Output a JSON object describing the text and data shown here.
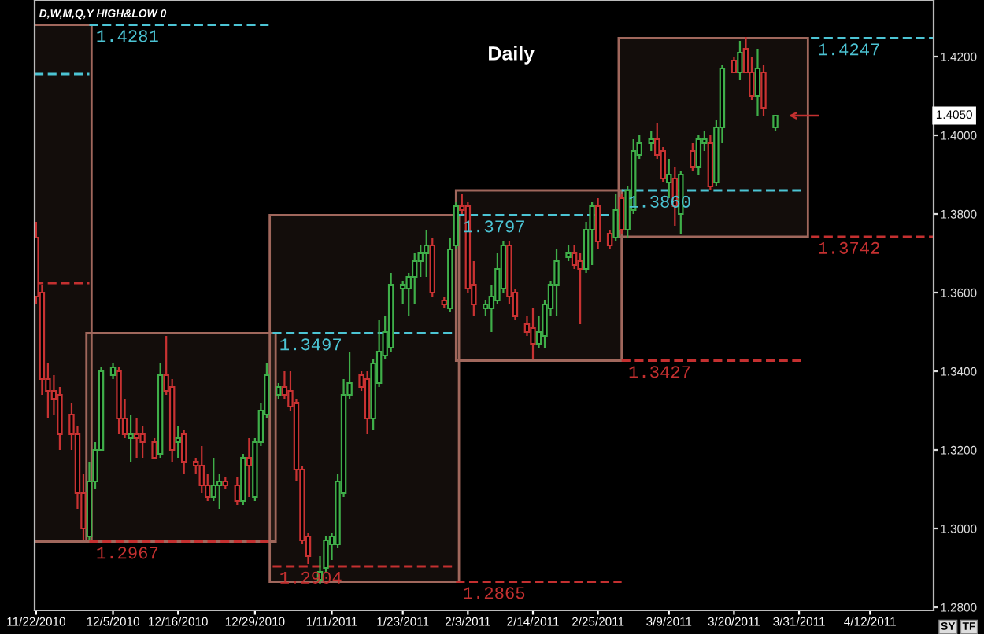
{
  "chart_data": {
    "type": "candlestick",
    "title": "Daily",
    "x": [
      "2010-11-22",
      "2010-11-23",
      "2010-11-24",
      "2010-11-25",
      "2010-11-26",
      "2010-11-28",
      "2010-11-29",
      "2010-11-30",
      "2010-12-01",
      "2010-12-02",
      "2010-12-03",
      "2010-12-05",
      "2010-12-06",
      "2010-12-07",
      "2010-12-08",
      "2010-12-09",
      "2010-12-10",
      "2010-12-12",
      "2010-12-13",
      "2010-12-14",
      "2010-12-15",
      "2010-12-16",
      "2010-12-17",
      "2010-12-19",
      "2010-12-20",
      "2010-12-21",
      "2010-12-22",
      "2010-12-23",
      "2010-12-24",
      "2010-12-26",
      "2010-12-27",
      "2010-12-28",
      "2010-12-29",
      "2010-12-30",
      "2010-12-31",
      "2011-01-02",
      "2011-01-03",
      "2011-01-04",
      "2011-01-05",
      "2011-01-06",
      "2011-01-07",
      "2011-01-09",
      "2011-01-10",
      "2011-01-11",
      "2011-01-12",
      "2011-01-13",
      "2011-01-14",
      "2011-01-16",
      "2011-01-17",
      "2011-01-18",
      "2011-01-19",
      "2011-01-20",
      "2011-01-21",
      "2011-01-23",
      "2011-01-24",
      "2011-01-25",
      "2011-01-26",
      "2011-01-27",
      "2011-01-28",
      "2011-01-30",
      "2011-01-31",
      "2011-02-01",
      "2011-02-02",
      "2011-02-03",
      "2011-02-04",
      "2011-02-06",
      "2011-02-07",
      "2011-02-08",
      "2011-02-09",
      "2011-02-10",
      "2011-02-11",
      "2011-02-13",
      "2011-02-14",
      "2011-02-15",
      "2011-02-16",
      "2011-02-17",
      "2011-02-18",
      "2011-02-20",
      "2011-02-21",
      "2011-02-22",
      "2011-02-23",
      "2011-02-24",
      "2011-02-25",
      "2011-02-27",
      "2011-02-28",
      "2011-03-01",
      "2011-03-02",
      "2011-03-03",
      "2011-03-04",
      "2011-03-06",
      "2011-03-07",
      "2011-03-08",
      "2011-03-09",
      "2011-03-10",
      "2011-03-11",
      "2011-03-13",
      "2011-03-14",
      "2011-03-15",
      "2011-03-16",
      "2011-03-17",
      "2011-03-18",
      "2011-03-20",
      "2011-03-21",
      "2011-03-22",
      "2011-03-23",
      "2011-03-24",
      "2011-03-25",
      "2011-03-27"
    ],
    "ohlc": [
      [
        1.374,
        1.378,
        1.357,
        1.359
      ],
      [
        1.36,
        1.362,
        1.334,
        1.338
      ],
      [
        1.338,
        1.342,
        1.328,
        1.335
      ],
      [
        1.335,
        1.339,
        1.329,
        1.333
      ],
      [
        1.334,
        1.336,
        1.32,
        1.324
      ],
      [
        1.329,
        1.332,
        1.32,
        1.324
      ],
      [
        1.324,
        1.326,
        1.305,
        1.309
      ],
      [
        1.309,
        1.314,
        1.297,
        1.3
      ],
      [
        1.298,
        1.317,
        1.297,
        1.312
      ],
      [
        1.312,
        1.322,
        1.31,
        1.32
      ],
      [
        1.32,
        1.341,
        1.32,
        1.34
      ],
      [
        1.339,
        1.342,
        1.338,
        1.341
      ],
      [
        1.34,
        1.341,
        1.324,
        1.328
      ],
      [
        1.328,
        1.333,
        1.323,
        1.324
      ],
      [
        1.323,
        1.329,
        1.317,
        1.324
      ],
      [
        1.324,
        1.328,
        1.318,
        1.323
      ],
      [
        1.324,
        1.326,
        1.318,
        1.322
      ],
      [
        1.322,
        1.323,
        1.318,
        1.318
      ],
      [
        1.319,
        1.342,
        1.318,
        1.339
      ],
      [
        1.339,
        1.349,
        1.334,
        1.335
      ],
      [
        1.336,
        1.338,
        1.317,
        1.32
      ],
      [
        1.322,
        1.326,
        1.318,
        1.323
      ],
      [
        1.324,
        1.325,
        1.314,
        1.317
      ],
      [
        1.317,
        1.318,
        1.314,
        1.316
      ],
      [
        1.316,
        1.321,
        1.309,
        1.311
      ],
      [
        1.311,
        1.314,
        1.307,
        1.308
      ],
      [
        1.308,
        1.318,
        1.307,
        1.311
      ],
      [
        1.311,
        1.314,
        1.305,
        1.312
      ],
      [
        1.312,
        1.313,
        1.31,
        1.311
      ],
      [
        1.311,
        1.313,
        1.306,
        1.307
      ],
      [
        1.307,
        1.319,
        1.306,
        1.318
      ],
      [
        1.318,
        1.323,
        1.308,
        1.316
      ],
      [
        1.308,
        1.323,
        1.307,
        1.322
      ],
      [
        1.322,
        1.332,
        1.321,
        1.33
      ],
      [
        1.329,
        1.342,
        1.328,
        1.339
      ],
      [
        1.334,
        1.337,
        1.333,
        1.336
      ],
      [
        1.336,
        1.34,
        1.333,
        1.334
      ],
      [
        1.335,
        1.34,
        1.33,
        1.331
      ],
      [
        1.332,
        1.333,
        1.312,
        1.315
      ],
      [
        1.315,
        1.316,
        1.296,
        1.297
      ],
      [
        1.298,
        1.299,
        1.291,
        1.293
      ],
      [
        1.287,
        1.293,
        1.286,
        1.289
      ],
      [
        1.29,
        1.298,
        1.289,
        1.297
      ],
      [
        1.296,
        1.299,
        1.292,
        1.298
      ],
      [
        1.296,
        1.314,
        1.295,
        1.312
      ],
      [
        1.309,
        1.338,
        1.308,
        1.334
      ],
      [
        1.334,
        1.345,
        1.333,
        1.337
      ],
      [
        1.339,
        1.34,
        1.335,
        1.336
      ],
      [
        1.338,
        1.34,
        1.324,
        1.328
      ],
      [
        1.328,
        1.343,
        1.325,
        1.342
      ],
      [
        1.337,
        1.353,
        1.336,
        1.345
      ],
      [
        1.344,
        1.354,
        1.343,
        1.35
      ],
      [
        1.346,
        1.365,
        1.345,
        1.362
      ],
      [
        1.361,
        1.363,
        1.357,
        1.362
      ],
      [
        1.361,
        1.365,
        1.354,
        1.364
      ],
      [
        1.364,
        1.37,
        1.357,
        1.368
      ],
      [
        1.368,
        1.372,
        1.364,
        1.37
      ],
      [
        1.37,
        1.376,
        1.364,
        1.372
      ],
      [
        1.372,
        1.374,
        1.359,
        1.36
      ],
      [
        1.358,
        1.359,
        1.356,
        1.357
      ],
      [
        1.356,
        1.374,
        1.355,
        1.371
      ],
      [
        1.372,
        1.383,
        1.371,
        1.382
      ],
      [
        1.382,
        1.385,
        1.38,
        1.381
      ],
      [
        1.382,
        1.383,
        1.36,
        1.361
      ],
      [
        1.362,
        1.368,
        1.354,
        1.357
      ],
      [
        1.356,
        1.358,
        1.354,
        1.357
      ],
      [
        1.356,
        1.362,
        1.35,
        1.359
      ],
      [
        1.358,
        1.37,
        1.357,
        1.366
      ],
      [
        1.361,
        1.373,
        1.36,
        1.372
      ],
      [
        1.372,
        1.373,
        1.357,
        1.359
      ],
      [
        1.36,
        1.361,
        1.353,
        1.354
      ],
      [
        1.352,
        1.354,
        1.349,
        1.35
      ],
      [
        1.351,
        1.356,
        1.343,
        1.347
      ],
      [
        1.347,
        1.354,
        1.346,
        1.35
      ],
      [
        1.349,
        1.358,
        1.346,
        1.357
      ],
      [
        1.356,
        1.363,
        1.354,
        1.362
      ],
      [
        1.362,
        1.371,
        1.354,
        1.368
      ],
      [
        1.369,
        1.372,
        1.368,
        1.37
      ],
      [
        1.37,
        1.372,
        1.366,
        1.367
      ],
      [
        1.368,
        1.37,
        1.352,
        1.366
      ],
      [
        1.366,
        1.378,
        1.365,
        1.376
      ],
      [
        1.376,
        1.383,
        1.367,
        1.382
      ],
      [
        1.382,
        1.384,
        1.371,
        1.373
      ],
      [
        1.375,
        1.376,
        1.371,
        1.372
      ],
      [
        1.374,
        1.385,
        1.373,
        1.381
      ],
      [
        1.384,
        1.385,
        1.375,
        1.376
      ],
      [
        1.376,
        1.387,
        1.374,
        1.386
      ],
      [
        1.381,
        1.399,
        1.38,
        1.396
      ],
      [
        1.395,
        1.4,
        1.394,
        1.398
      ],
      [
        1.398,
        1.401,
        1.396,
        1.399
      ],
      [
        1.399,
        1.403,
        1.394,
        1.395
      ],
      [
        1.396,
        1.397,
        1.388,
        1.389
      ],
      [
        1.388,
        1.394,
        1.384,
        1.39
      ],
      [
        1.389,
        1.392,
        1.377,
        1.382
      ],
      [
        1.38,
        1.391,
        1.375,
        1.39
      ],
      [
        1.396,
        1.398,
        1.391,
        1.392
      ],
      [
        1.392,
        1.4,
        1.39,
        1.399
      ],
      [
        1.398,
        1.401,
        1.396,
        1.399
      ],
      [
        1.398,
        1.4,
        1.386,
        1.387
      ],
      [
        1.388,
        1.404,
        1.387,
        1.402
      ],
      [
        1.402,
        1.418,
        1.398,
        1.417
      ],
      [
        1.419,
        1.42,
        1.416,
        1.416
      ],
      [
        1.416,
        1.424,
        1.414,
        1.421
      ],
      [
        1.422,
        1.425,
        1.416,
        1.416
      ],
      [
        1.416,
        1.42,
        1.409,
        1.41
      ],
      [
        1.41,
        1.422,
        1.405,
        1.417
      ],
      [
        1.416,
        1.418,
        1.405,
        1.407
      ],
      [
        1.402,
        1.405,
        1.401,
        1.405
      ]
    ],
    "colors": [
      "#c83232",
      "#c83232",
      "#c83232",
      "#c83232",
      "#c83232",
      "#c83232",
      "#c83232",
      "#c83232",
      "#3fae49",
      "#3fae49",
      "#3fae49",
      "#3fae49",
      "#c83232",
      "#c83232",
      "#3fae49",
      "#c83232",
      "#c83232",
      "#c83232",
      "#3fae49",
      "#c83232",
      "#c83232",
      "#3fae49",
      "#c83232",
      "#c83232",
      "#c83232",
      "#c83232",
      "#3fae49",
      "#3fae49",
      "#c83232",
      "#c83232",
      "#3fae49",
      "#c83232",
      "#3fae49",
      "#3fae49",
      "#3fae49",
      "#3fae49",
      "#c83232",
      "#c83232",
      "#c83232",
      "#c83232",
      "#c83232",
      "#3fae49",
      "#3fae49",
      "#3fae49",
      "#3fae49",
      "#3fae49",
      "#3fae49",
      "#c83232",
      "#c83232",
      "#3fae49",
      "#3fae49",
      "#3fae49",
      "#3fae49",
      "#3fae49",
      "#3fae49",
      "#3fae49",
      "#3fae49",
      "#3fae49",
      "#c83232",
      "#c83232",
      "#3fae49",
      "#3fae49",
      "#c83232",
      "#c83232",
      "#c83232",
      "#3fae49",
      "#3fae49",
      "#3fae49",
      "#3fae49",
      "#c83232",
      "#c83232",
      "#c83232",
      "#c83232",
      "#3fae49",
      "#3fae49",
      "#3fae49",
      "#3fae49",
      "#3fae49",
      "#c83232",
      "#c83232",
      "#3fae49",
      "#3fae49",
      "#c83232",
      "#c83232",
      "#3fae49",
      "#c83232",
      "#3fae49",
      "#3fae49",
      "#3fae49",
      "#3fae49",
      "#c83232",
      "#c83232",
      "#3fae49",
      "#c83232",
      "#3fae49",
      "#c83232",
      "#3fae49",
      "#3fae49",
      "#c83232",
      "#3fae49",
      "#3fae49",
      "#c83232",
      "#3fae49",
      "#c83232",
      "#c83232",
      "#3fae49",
      "#c83232",
      "#3fae49"
    ],
    "series": [
      {
        "type": "bar",
        "color": "#a0675c",
        "x": [
          "2010-11-26T09:00",
          "2010-12-16T12:00",
          "2011-01-16T12:00",
          "2011-02-15",
          "2011-03-16T12:00"
        ],
        "base": [
          1.2967,
          1.2967,
          1.2865,
          1.3427,
          1.3742
        ],
        "values": [
          0.1314,
          0.053,
          0.0932,
          0.0433,
          0.0505
        ]
      },
      {
        "type": "line",
        "color": "#4cc4d4",
        "line_style": "dashed",
        "x": [
          "2010-11-21T18:00",
          "2010-12-01"
        ],
        "values": [
          1.4156,
          1.4156
        ]
      },
      {
        "type": "line",
        "color": "#c43030",
        "line_style": "dashed",
        "x": [
          "2010-11-21T18:00",
          "2010-12-01"
        ],
        "values": [
          1.3624,
          1.3624
        ]
      },
      {
        "type": "line",
        "color": "#4cc4d4",
        "line_style": "dashed",
        "x": [
          "2010-12-01",
          "2011-01-01"
        ],
        "values": [
          1.4281,
          1.4281
        ]
      },
      {
        "type": "line",
        "color": "#c43030",
        "line_style": "dashed",
        "x": [
          "2010-12-01",
          "2011-01-01"
        ],
        "values": [
          1.2967,
          1.2967
        ]
      },
      {
        "type": "line",
        "color": "#4cc4d4",
        "line_style": "dashed",
        "x": [
          "2011-01-01",
          "2011-02-01"
        ],
        "values": [
          1.3497,
          1.3497
        ]
      },
      {
        "type": "line",
        "color": "#c43030",
        "line_style": "dashed",
        "x": [
          "2011-01-01",
          "2011-02-01"
        ],
        "values": [
          1.2904,
          1.2904
        ]
      },
      {
        "type": "line",
        "color": "#4cc4d4",
        "line_style": "dashed",
        "x": [
          "2011-02-01",
          "2011-03-01"
        ],
        "values": [
          1.3797,
          1.3797
        ]
      },
      {
        "type": "line",
        "color": "#c43030",
        "line_style": "dashed",
        "x": [
          "2011-02-01",
          "2011-03-01"
        ],
        "values": [
          1.2865,
          1.2865
        ]
      },
      {
        "type": "line",
        "color": "#4cc4d4",
        "line_style": "dashed",
        "x": [
          "2011-03-01",
          "2011-04-01"
        ],
        "values": [
          1.386,
          1.386
        ]
      },
      {
        "type": "line",
        "color": "#c43030",
        "line_style": "dashed",
        "x": [
          "2011-03-01",
          "2011-04-01"
        ],
        "values": [
          1.3427,
          1.3427
        ]
      },
      {
        "type": "line",
        "color": "#4cc4d4",
        "line_style": "dashed",
        "x": [
          "2011-04-02",
          "2011-04-22T18:00"
        ],
        "values": [
          1.4247,
          1.4247
        ]
      },
      {
        "type": "line",
        "color": "#c43030",
        "line_style": "dashed",
        "x": [
          "2011-04-02",
          "2011-04-22T18:00"
        ],
        "values": [
          1.3742,
          1.3742
        ]
      }
    ],
    "annotations": [
      "D,W,M,Q,Y HIGH&LOW 0",
      {
        "text": "1.4281",
        "x": "2010-12-01",
        "y": 1.4281
      },
      {
        "text": "1.2967",
        "x": "2010-12-01",
        "y": 1.2967
      },
      {
        "text": "1.3497",
        "x": "2011-01-01",
        "y": 1.3497
      },
      {
        "text": "1.2904",
        "x": "2011-01-01",
        "y": 1.2904
      },
      {
        "text": "1.3797",
        "x": "2011-02-01",
        "y": 1.3797
      },
      {
        "text": "1.2865",
        "x": "2011-02-01",
        "y": 1.2865
      },
      {
        "text": "1.3860",
        "x": "2011-03-01",
        "y": 1.386
      },
      {
        "text": "1.3427",
        "x": "2011-03-01",
        "y": 1.3427
      },
      {
        "text": "1.4247",
        "x": "2011-04-02",
        "y": 1.4247
      },
      {
        "text": "1.3742",
        "x": "2011-04-02",
        "y": 1.3742
      },
      "1.4050",
      "SY",
      "TF"
    ],
    "xlim": [
      "2010-11-21T18:00",
      "2011-04-22T18:00"
    ],
    "xticks": [
      {
        "value": "2010-11-22",
        "label": "11/22/2010"
      },
      {
        "value": "2010-12-05",
        "label": "12/5/2010"
      },
      {
        "value": "2010-12-16",
        "label": "12/16/2010"
      },
      {
        "value": "2010-12-29",
        "label": "12/29/2010"
      },
      {
        "value": "2011-01-11",
        "label": "1/11/2011"
      },
      {
        "value": "2011-01-23",
        "label": "1/23/2011"
      },
      {
        "value": "2011-02-03",
        "label": "2/3/2011"
      },
      {
        "value": "2011-02-14",
        "label": "2/14/2011"
      },
      {
        "value": "2011-02-25",
        "label": "2/25/2011"
      },
      {
        "value": "2011-03-09",
        "label": "3/9/2011"
      },
      {
        "value": "2011-03-20",
        "label": "3/20/2011"
      },
      {
        "value": "2011-03-31",
        "label": "3/31/2011"
      },
      {
        "value": "2011-04-12",
        "label": "4/12/2011"
      }
    ],
    "ylim": [
      1.2792,
      1.4344
    ],
    "yticks": [
      {
        "value": 1.28,
        "label": "1.2800"
      },
      {
        "value": 1.3,
        "label": "1.3000"
      },
      {
        "value": 1.32,
        "label": "1.3200"
      },
      {
        "value": 1.34,
        "label": "1.3400"
      },
      {
        "value": 1.36,
        "label": "1.3600"
      },
      {
        "value": 1.38,
        "label": "1.3800"
      },
      {
        "value": 1.4,
        "label": "1.4000"
      },
      {
        "value": 1.42,
        "label": "1.4200"
      }
    ],
    "grid": false,
    "legend": false
  }
}
